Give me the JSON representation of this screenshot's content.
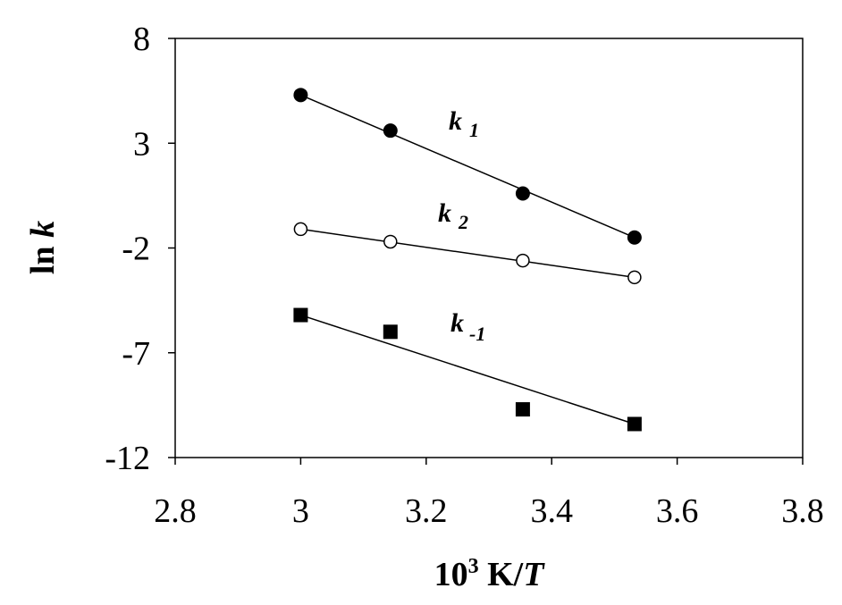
{
  "chart_data": {
    "type": "scatter",
    "xlabel": {
      "base": "10",
      "sup": "3",
      "rest": " K/",
      "var": "T"
    },
    "ylabel": {
      "prefix": "ln ",
      "var": "k"
    },
    "xlim": [
      2.8,
      3.8
    ],
    "ylim": [
      -12,
      8
    ],
    "xticks": [
      2.8,
      3.0,
      3.2,
      3.4,
      3.6,
      3.8
    ],
    "xtick_labels": [
      "2.8",
      "3",
      "3.2",
      "3.4",
      "3.6",
      "3.8"
    ],
    "yticks": [
      8,
      3,
      -2,
      -7,
      -12
    ],
    "ytick_labels": [
      "8",
      "3",
      "-2",
      "-7",
      "-12"
    ],
    "grid": false,
    "series": [
      {
        "name": "k 1",
        "label_main": "k",
        "label_sub": "1",
        "marker": "filled-circle",
        "x": [
          3.0,
          3.143,
          3.354,
          3.532
        ],
        "y": [
          5.3,
          3.6,
          0.6,
          -1.5
        ],
        "fit": {
          "x": [
            3.0,
            3.532
          ],
          "y": [
            5.3,
            -1.5
          ]
        }
      },
      {
        "name": "k 2",
        "label_main": "k",
        "label_sub": "2",
        "marker": "open-circle",
        "x": [
          3.0,
          3.143,
          3.354,
          3.532
        ],
        "y": [
          -1.1,
          -1.7,
          -2.6,
          -3.4
        ],
        "fit": {
          "x": [
            3.0,
            3.532
          ],
          "y": [
            -1.1,
            -3.4
          ]
        }
      },
      {
        "name": "k -1",
        "label_main": "k",
        "label_sub": "-1",
        "marker": "filled-square",
        "x": [
          3.0,
          3.143,
          3.354,
          3.532
        ],
        "y": [
          -5.2,
          -6.0,
          -9.7,
          -10.4
        ],
        "fit": {
          "x": [
            3.0,
            3.532
          ],
          "y": [
            -5.2,
            -10.4
          ]
        }
      }
    ]
  }
}
